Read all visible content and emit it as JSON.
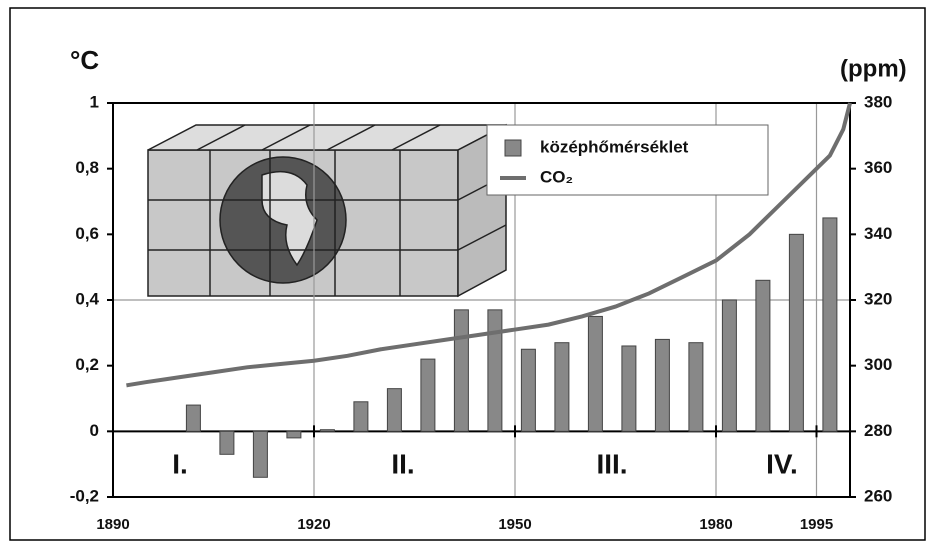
{
  "chart_data": {
    "type": "bar-line",
    "y_label": "°C",
    "y2_label": "(ppm)",
    "xlim": [
      1890,
      2000
    ],
    "xticks": [
      1890,
      1920,
      1950,
      1980,
      1995
    ],
    "ylim": [
      -0.2,
      1
    ],
    "yticks": [
      {
        "value": -0.2,
        "label": "-0,2"
      },
      0,
      {
        "value": 0.2,
        "label": "0,2"
      },
      {
        "value": 0.4,
        "label": "0,4"
      },
      {
        "value": 0.6,
        "label": "0,6"
      },
      {
        "value": 0.8,
        "label": "0,8"
      },
      1
    ],
    "y2lim": [
      260,
      380
    ],
    "y2ticks": [
      260,
      280,
      300,
      320,
      340,
      360,
      380
    ],
    "grid": true,
    "series": [
      {
        "name": "középhőmérséklet",
        "type": "bar",
        "color": "#888888",
        "x": [
          1902,
          1907,
          1912,
          1917,
          1922,
          1927,
          1932,
          1937,
          1942,
          1947,
          1952,
          1957,
          1962,
          1967,
          1972,
          1977,
          1982,
          1987,
          1992,
          1997
        ],
        "values": [
          0.08,
          -0.07,
          -0.14,
          -0.02,
          0.005,
          0.09,
          0.13,
          0.22,
          0.37,
          0.37,
          0.25,
          0.27,
          0.35,
          0.26,
          0.28,
          0.27,
          0.4,
          0.46,
          0.6,
          0.65
        ]
      },
      {
        "name": "CO₂",
        "type": "line",
        "axis": "y2",
        "color": "#6e6e6e",
        "x": [
          1892,
          1895,
          1900,
          1905,
          1910,
          1915,
          1920,
          1925,
          1930,
          1935,
          1940,
          1945,
          1950,
          1955,
          1960,
          1965,
          1970,
          1975,
          1980,
          1985,
          1990,
          1995,
          1997,
          1999,
          2000
        ],
        "values": [
          294,
          295,
          296.5,
          298,
          299.5,
          300.5,
          301.5,
          303,
          305,
          306.5,
          308,
          309.5,
          311,
          312.5,
          315,
          318,
          322,
          327,
          332,
          340,
          350,
          360,
          364,
          372,
          380
        ]
      }
    ],
    "annotations": [
      "I.",
      "II.",
      "III.",
      "IV."
    ]
  }
}
